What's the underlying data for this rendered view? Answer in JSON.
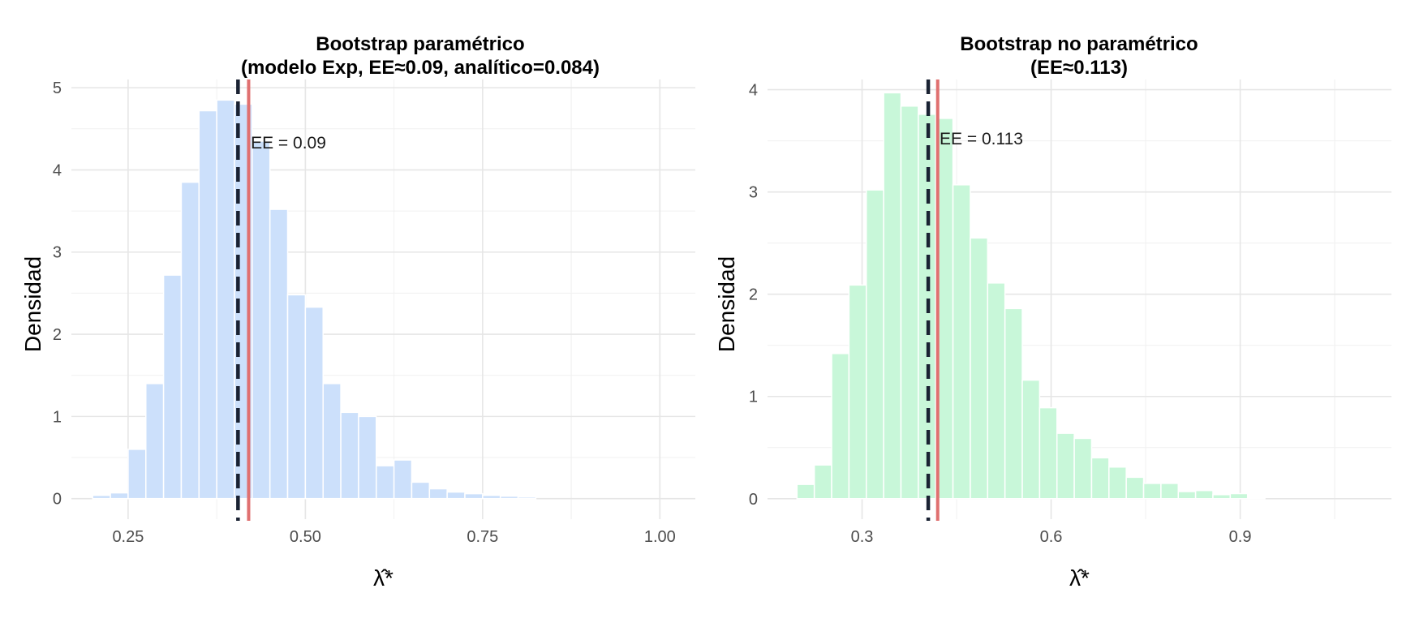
{
  "chart_data": [
    {
      "type": "bar",
      "title_line1": "Bootstrap paramétrico",
      "title_line2": "(modelo Exp, EE≈0.09, analítico=0.084)",
      "xlabel": "λ̂*",
      "ylabel": "Densidad",
      "xlim": [
        0.17,
        1.05
      ],
      "ylim": [
        -0.25,
        5.1
      ],
      "x_ticks": [
        0.25,
        0.5,
        0.75,
        1.0
      ],
      "x_tick_labels": [
        "0.25",
        "0.50",
        "0.75",
        "1.00"
      ],
      "y_ticks": [
        0,
        1,
        2,
        3,
        4,
        5
      ],
      "y_tick_labels": [
        "0",
        "1",
        "2",
        "3",
        "4",
        "5"
      ],
      "bin_width": 0.025,
      "bin_centers": [
        0.2125,
        0.2375,
        0.2625,
        0.2875,
        0.3125,
        0.3375,
        0.3625,
        0.3875,
        0.4125,
        0.4375,
        0.4625,
        0.4875,
        0.5125,
        0.5375,
        0.5625,
        0.5875,
        0.6125,
        0.6375,
        0.6625,
        0.6875,
        0.7125,
        0.7375,
        0.7625,
        0.7875,
        0.8125
      ],
      "values": [
        0.04,
        0.07,
        0.6,
        1.4,
        2.72,
        3.85,
        4.72,
        4.85,
        4.8,
        4.35,
        3.52,
        2.48,
        2.33,
        1.4,
        1.05,
        1.0,
        0.4,
        0.47,
        0.2,
        0.12,
        0.08,
        0.06,
        0.04,
        0.03,
        0.02
      ],
      "bar_color": "#cce0fb",
      "dashed_line_x": 0.405,
      "solid_line_x": 0.42,
      "dashed_color": "#1a2233",
      "solid_color": "#e07070",
      "annotation": "EE = 0.09",
      "annotation_x": 0.423,
      "annotation_y": 4.33
    },
    {
      "type": "bar",
      "title_line1": "Bootstrap no paramétrico",
      "title_line2": "(EE≈0.113)",
      "xlabel": "λ̂*",
      "ylabel": "Densidad",
      "xlim": [
        0.15,
        1.14
      ],
      "ylim": [
        -0.2,
        4.1
      ],
      "x_ticks": [
        0.3,
        0.6,
        0.9
      ],
      "x_tick_labels": [
        "0.3",
        "0.6",
        "0.9"
      ],
      "y_ticks": [
        0,
        1,
        2,
        3,
        4
      ],
      "y_tick_labels": [
        "0",
        "1",
        "2",
        "3",
        "4"
      ],
      "bin_width": 0.0275,
      "bin_centers": [
        0.2105,
        0.238,
        0.2655,
        0.293,
        0.3205,
        0.348,
        0.3755,
        0.403,
        0.4305,
        0.458,
        0.4855,
        0.513,
        0.5405,
        0.568,
        0.5955,
        0.623,
        0.6505,
        0.678,
        0.7055,
        0.733,
        0.7605,
        0.788,
        0.8155,
        0.843,
        0.8705,
        0.898,
        0.9255
      ],
      "values": [
        0.14,
        0.33,
        1.42,
        2.09,
        3.02,
        3.97,
        3.84,
        3.76,
        3.72,
        3.07,
        2.55,
        2.11,
        1.86,
        1.16,
        0.89,
        0.64,
        0.59,
        0.4,
        0.31,
        0.21,
        0.15,
        0.15,
        0.07,
        0.08,
        0.04,
        0.05,
        0.01
      ],
      "bar_color": "#c8f7d9",
      "dashed_line_x": 0.405,
      "solid_line_x": 0.42,
      "dashed_color": "#1a2233",
      "solid_color": "#e07070",
      "annotation": "EE = 0.113",
      "annotation_x": 0.423,
      "annotation_y": 3.52
    }
  ]
}
